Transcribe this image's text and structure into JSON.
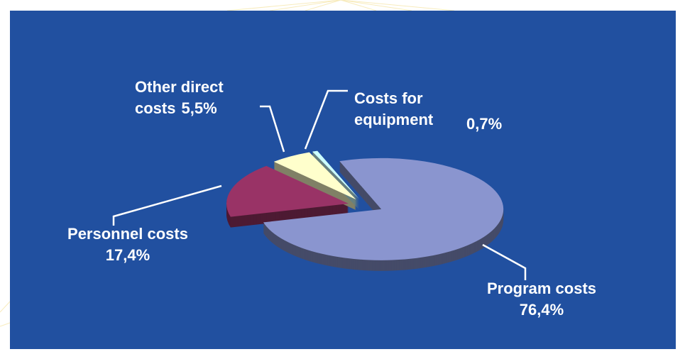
{
  "chart_data": {
    "type": "pie3d",
    "categories": [
      "Program costs",
      "Personnel costs",
      "Other direct costs",
      "Costs for equipment"
    ],
    "values": [
      76.4,
      17.4,
      5.5,
      0.7
    ],
    "value_labels": [
      "76,4%",
      "17,4%",
      "5,5%",
      "0,7%"
    ],
    "colors": [
      "#8a95cf",
      "#993366",
      "#ffffcc",
      "#ccffff"
    ]
  }
}
